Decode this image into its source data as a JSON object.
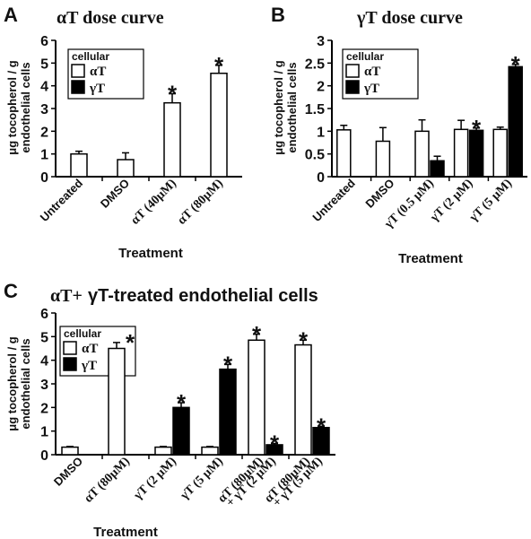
{
  "panels": [
    {
      "letter": "A",
      "title": "αT dose curve",
      "ylabel_lines": [
        "μg tocopherol / g",
        "endothelial cells"
      ],
      "xlabel": "Treatment",
      "legend": {
        "title": "cellular",
        "items": [
          "αT",
          "γT"
        ]
      }
    },
    {
      "letter": "B",
      "title": "γT dose curve",
      "ylabel_lines": [
        "μg tocopherol / g",
        "endothelial cells"
      ],
      "xlabel": "Treatment",
      "legend": {
        "title": "cellular",
        "items": [
          "αT",
          "γT"
        ]
      }
    },
    {
      "letter": "C",
      "title_part1": "αT+",
      "title_part2": " γT-treated endothelial cells",
      "ylabel_lines": [
        "μg tocopherol / g",
        "endothelial cells"
      ],
      "xlabel": "Treatment",
      "legend": {
        "title": "cellular",
        "items": [
          "αT",
          "γT"
        ]
      }
    }
  ],
  "colors": {
    "alpha": "#ffffff",
    "gamma": "#000000",
    "stroke": "#000000"
  },
  "chart_data": [
    {
      "type": "bar",
      "title": "αT dose curve",
      "xlabel": "Treatment",
      "ylabel": "μg tocopherol / g endothelial cells",
      "ylim": [
        0,
        6
      ],
      "yticks": [
        0,
        1,
        2,
        3,
        4,
        5,
        6
      ],
      "categories": [
        "Untreated",
        "DMSO",
        "αT (40μM)",
        "αT (80μM)"
      ],
      "series": [
        {
          "name": "αT",
          "values": [
            1.0,
            0.75,
            3.25,
            4.55
          ],
          "errors": [
            0.12,
            0.3,
            0.4,
            0.35
          ],
          "significant": [
            false,
            false,
            true,
            true
          ]
        }
      ],
      "legend_position": "top-left"
    },
    {
      "type": "bar",
      "title": "γT dose curve",
      "xlabel": "Treatment",
      "ylabel": "μg tocopherol / g endothelial cells",
      "ylim": [
        0,
        3
      ],
      "yticks": [
        0,
        0.5,
        1,
        1.5,
        2,
        2.5,
        3
      ],
      "categories": [
        "Untreated",
        "DMSO",
        "γT (0.5 μM)",
        "γT (2 μM)",
        "γT (5 μM)"
      ],
      "series": [
        {
          "name": "αT",
          "values": [
            1.03,
            0.78,
            1.0,
            1.04,
            1.04
          ],
          "errors": [
            0.1,
            0.3,
            0.25,
            0.2,
            0.05
          ],
          "significant": [
            false,
            false,
            false,
            false,
            false
          ]
        },
        {
          "name": "γT",
          "values": [
            null,
            null,
            0.35,
            1.02,
            2.42
          ],
          "errors": [
            null,
            null,
            0.1,
            0.05,
            0.05
          ],
          "significant": [
            false,
            false,
            false,
            true,
            true
          ]
        }
      ],
      "legend_position": "top-left"
    },
    {
      "type": "bar",
      "title": "αT+ γT-treated endothelial cells",
      "xlabel": "Treatment",
      "ylabel": "μg tocopherol / g endothelial cells",
      "ylim": [
        0,
        6
      ],
      "yticks": [
        0,
        1,
        2,
        3,
        4,
        5,
        6
      ],
      "categories": [
        "DMSO",
        "αT (80μM)",
        "γT (2 μM)",
        "γT (5 μM)",
        "αT (80μM) + γT (2 μM)",
        "αT (80μM) + γT (5 μM)"
      ],
      "category_lines": [
        [
          "DMSO"
        ],
        [
          "αT (80μM)"
        ],
        [
          "γT (2 μM)"
        ],
        [
          "γT (5 μM)"
        ],
        [
          "αT (80μM)",
          "+ γT (2 μM)"
        ],
        [
          "αT (80μM)",
          "+ γT (5 μM)"
        ]
      ],
      "series": [
        {
          "name": "αT",
          "values": [
            0.32,
            4.5,
            0.32,
            0.32,
            4.85,
            4.65
          ],
          "errors": [
            0.03,
            0.25,
            0.03,
            0.03,
            0.25,
            0.2
          ],
          "significant": [
            false,
            true,
            false,
            false,
            true,
            true
          ]
        },
        {
          "name": "γT",
          "values": [
            null,
            null,
            2.0,
            3.62,
            0.42,
            1.15
          ],
          "errors": [
            null,
            null,
            0.2,
            0.2,
            0.05,
            0.05
          ],
          "significant": [
            false,
            false,
            true,
            true,
            true,
            true
          ]
        }
      ],
      "legend_position": "top-left"
    }
  ]
}
